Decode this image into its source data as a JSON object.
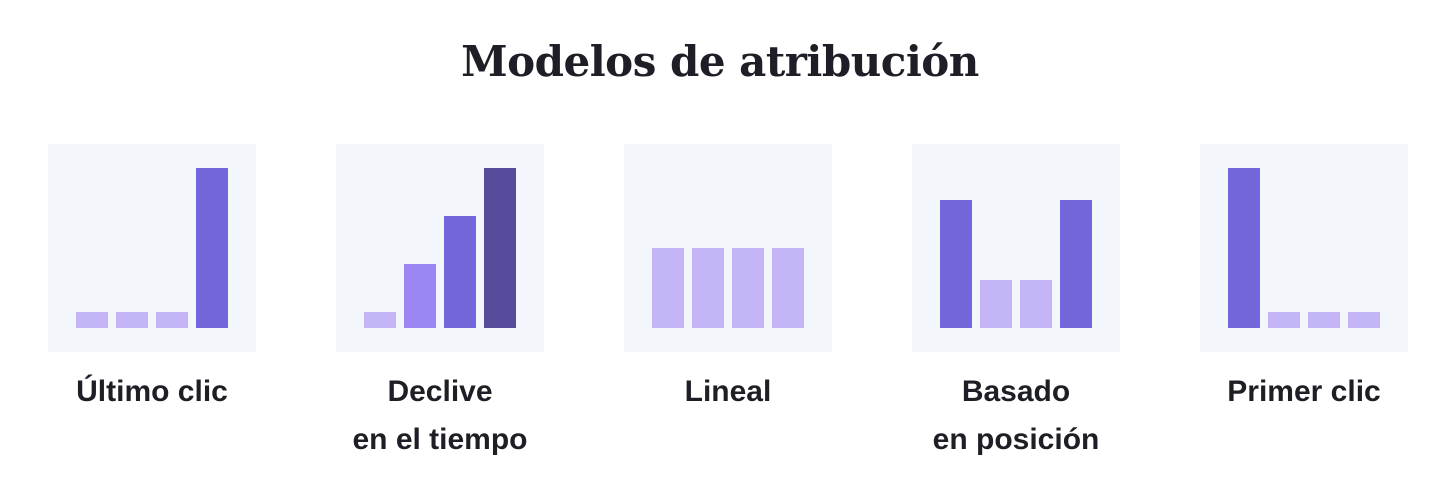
{
  "title": "Modelos de atribución",
  "colors": {
    "panel_bg": "#f3f6fa",
    "light": "#c4b5f6",
    "medium": "#9b86f3",
    "strong": "#7366da",
    "dark": "#554d9c"
  },
  "chart_data": [
    {
      "type": "bar",
      "title": "",
      "label_lines": [
        "Último clic"
      ],
      "categories": [
        "1",
        "2",
        "3",
        "4"
      ],
      "values": [
        10,
        10,
        10,
        100
      ],
      "colors": [
        "light",
        "light",
        "light",
        "strong"
      ],
      "ylim": [
        0,
        100
      ],
      "grid": false
    },
    {
      "type": "bar",
      "title": "",
      "label_lines": [
        "Declive",
        "en el tiempo"
      ],
      "categories": [
        "1",
        "2",
        "3",
        "4"
      ],
      "values": [
        10,
        40,
        70,
        100
      ],
      "colors": [
        "light",
        "medium",
        "strong",
        "dark"
      ],
      "ylim": [
        0,
        100
      ],
      "grid": false
    },
    {
      "type": "bar",
      "title": "",
      "label_lines": [
        "Lineal"
      ],
      "categories": [
        "1",
        "2",
        "3",
        "4"
      ],
      "values": [
        50,
        50,
        50,
        50
      ],
      "colors": [
        "light",
        "light",
        "light",
        "light"
      ],
      "ylim": [
        0,
        100
      ],
      "grid": false
    },
    {
      "type": "bar",
      "title": "",
      "label_lines": [
        "Basado",
        "en posición"
      ],
      "categories": [
        "1",
        "2",
        "3",
        "4"
      ],
      "values": [
        80,
        30,
        30,
        80
      ],
      "colors": [
        "strong",
        "light",
        "light",
        "strong"
      ],
      "ylim": [
        0,
        100
      ],
      "grid": false
    },
    {
      "type": "bar",
      "title": "",
      "label_lines": [
        "Primer clic"
      ],
      "categories": [
        "1",
        "2",
        "3",
        "4"
      ],
      "values": [
        100,
        10,
        10,
        10
      ],
      "colors": [
        "strong",
        "light",
        "light",
        "light"
      ],
      "ylim": [
        0,
        100
      ],
      "grid": false
    }
  ]
}
